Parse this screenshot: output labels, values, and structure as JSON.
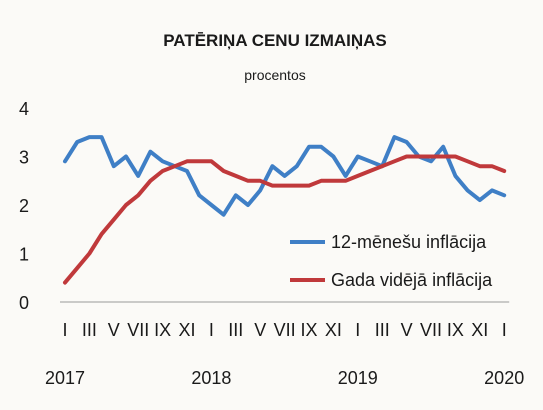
{
  "chart_data": {
    "type": "line",
    "title": "PATĒRIŅA CENU IZMAIŅAS",
    "subtitle": "procentos",
    "ylim": [
      0,
      4
    ],
    "yticks": [
      "0",
      "1",
      "2",
      "3",
      "4"
    ],
    "grid": false,
    "legend_position": "right",
    "x": [
      "2017-01",
      "2017-02",
      "2017-03",
      "2017-04",
      "2017-05",
      "2017-06",
      "2017-07",
      "2017-08",
      "2017-09",
      "2017-10",
      "2017-11",
      "2017-12",
      "2018-01",
      "2018-02",
      "2018-03",
      "2018-04",
      "2018-05",
      "2018-06",
      "2018-07",
      "2018-08",
      "2018-09",
      "2018-10",
      "2018-11",
      "2018-12",
      "2019-01",
      "2019-02",
      "2019-03",
      "2019-04",
      "2019-05",
      "2019-06",
      "2019-07",
      "2019-08",
      "2019-09",
      "2019-10",
      "2019-11",
      "2019-12",
      "2020-01"
    ],
    "month_tick_labels": [
      "I",
      "III",
      "V",
      "VII",
      "IX",
      "XI",
      "I",
      "III",
      "V",
      "VII",
      "IX",
      "XI",
      "I",
      "III",
      "V",
      "VII",
      "IX",
      "XI",
      "I"
    ],
    "year_labels": [
      "2017",
      "2018",
      "2019",
      "2020"
    ],
    "series": [
      {
        "name": "12-mēnešu inflācija",
        "color": "#3f7fc6",
        "values": [
          2.9,
          3.3,
          3.4,
          3.4,
          2.8,
          3.0,
          2.6,
          3.1,
          2.9,
          2.8,
          2.7,
          2.2,
          2.0,
          1.8,
          2.2,
          2.0,
          2.3,
          2.8,
          2.6,
          2.8,
          3.2,
          3.2,
          3.0,
          2.6,
          3.0,
          2.9,
          2.8,
          3.4,
          3.3,
          3.0,
          2.9,
          3.2,
          2.6,
          2.3,
          2.1,
          2.3,
          2.2
        ]
      },
      {
        "name": "Gada vidējā inflācija",
        "color": "#c0393b",
        "values": [
          0.4,
          0.7,
          1.0,
          1.4,
          1.7,
          2.0,
          2.2,
          2.5,
          2.7,
          2.8,
          2.9,
          2.9,
          2.9,
          2.7,
          2.6,
          2.5,
          2.5,
          2.4,
          2.4,
          2.4,
          2.4,
          2.5,
          2.5,
          2.5,
          2.6,
          2.7,
          2.8,
          2.9,
          3.0,
          3.0,
          3.0,
          3.0,
          3.0,
          2.9,
          2.8,
          2.8,
          2.7
        ]
      }
    ]
  }
}
